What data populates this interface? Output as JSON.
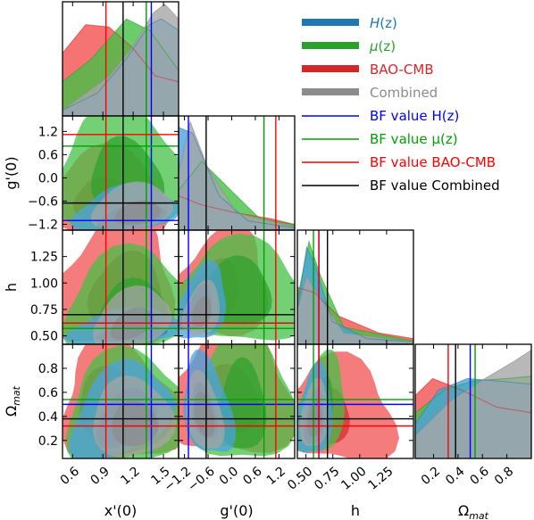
{
  "chart_data": {
    "type": "corner",
    "parameters": [
      "x'(0)",
      "g'(0)",
      "h",
      "Ωmat"
    ],
    "axis_labels": {
      "x": [
        "x'(0)",
        "g'(0)",
        "h",
        "Ω"
      ],
      "x_sub": [
        "",
        "",
        "",
        "mat"
      ],
      "y": [
        "g'(0)",
        "h",
        "Ω"
      ],
      "y_sub": [
        "",
        "",
        "mat"
      ]
    },
    "ranges": {
      "x'(0)": [
        0.5,
        1.65
      ],
      "g'(0)": [
        -1.35,
        1.6
      ],
      "h": [
        0.42,
        1.5
      ],
      "Ωmat": [
        0.05,
        1.0
      ]
    },
    "ticks": {
      "x'(0)": [
        0.6,
        0.9,
        1.2,
        1.5
      ],
      "g'(0)": [
        -1.2,
        -0.6,
        0.0,
        0.6,
        1.2
      ],
      "h": [
        0.5,
        0.75,
        1.0,
        1.25
      ],
      "Ωmat": [
        0.2,
        0.4,
        0.6,
        0.8
      ]
    },
    "tick_labels": {
      "x'(0)": [
        "0.6",
        "0.9",
        "1.2",
        "1.5"
      ],
      "g'(0)": [
        "−1.2",
        "−0.6",
        "0.0",
        "0.6",
        "1.2"
      ],
      "g'(0)_y": [
        "−1.2",
        "−0.6",
        "0.0",
        "0.6",
        "1.2"
      ],
      "h": [
        "0.50",
        "0.75",
        "1.00",
        "1.25"
      ],
      "h_y": [
        "0.50",
        "0.75",
        "1.00",
        "1.25"
      ],
      "Ωmat": [
        "0.2",
        "0.4",
        "0.6",
        "0.8"
      ],
      "Ωmat_y": [
        "0.2",
        "0.4",
        "0.6",
        "0.8"
      ]
    },
    "series": [
      {
        "name": "H(z)",
        "color": "#2c7fb8",
        "fill": "#4aa3df"
      },
      {
        "name": "μ(z)",
        "color": "#2ca02c",
        "fill": "#45c045"
      },
      {
        "name": "BAO-CMB",
        "color": "#d62728",
        "fill": "#f25050"
      },
      {
        "name": "Combined",
        "color": "#8c8c8c",
        "fill": "#a6a6a6"
      }
    ],
    "best_fit": [
      {
        "name": "BF value H(z)",
        "color": "#0000ff",
        "x'(0)": 1.38,
        "g'(0)": -1.1,
        "h": 0.62,
        "Ωmat": 0.5
      },
      {
        "name": "BF value μ(z)",
        "color": "#00a000",
        "x'(0)": 1.33,
        "g'(0)": 0.82,
        "h": 0.57,
        "Ωmat": 0.54
      },
      {
        "name": "BF value BAO-CMB",
        "color": "#ff0000",
        "x'(0)": 0.93,
        "g'(0)": 1.12,
        "h": 0.62,
        "Ωmat": 0.32
      },
      {
        "name": "BF value Combined",
        "color": "#000000",
        "x'(0)": 1.1,
        "g'(0)": -0.65,
        "h": 0.7,
        "Ωmat": 0.38
      }
    ]
  },
  "legend": {
    "entries": [
      {
        "label_main": "H",
        "label_rest": "(z)",
        "italic": true,
        "color": "#1f77b4",
        "swatch": "#1f77b4",
        "type": "band"
      },
      {
        "label_main": "μ",
        "label_rest": "(z)",
        "italic": true,
        "color": "#2ca02c",
        "swatch": "#2ca02c",
        "type": "band"
      },
      {
        "label_main": "BAO-CMB",
        "label_rest": "",
        "italic": false,
        "color": "#d62728",
        "swatch": "#d62728",
        "type": "band"
      },
      {
        "label_main": "Combined",
        "label_rest": "",
        "italic": false,
        "color": "#8c8c8c",
        "swatch": "#8c8c8c",
        "type": "band"
      },
      {
        "label_main": "BF value ",
        "label_rest": "H(z)",
        "italic": false,
        "color": "#0000ff",
        "swatch": "#0000ff",
        "type": "line"
      },
      {
        "label_main": "BF value ",
        "label_rest": "μ(z)",
        "italic": false,
        "color": "#00a000",
        "swatch": "#00a000",
        "type": "line"
      },
      {
        "label_main": "BF value BAO-CMB",
        "label_rest": "",
        "italic": false,
        "color": "#ff0000",
        "swatch": "#ff0000",
        "type": "line"
      },
      {
        "label_main": "BF value Combined",
        "label_rest": "",
        "italic": false,
        "color": "#000000",
        "swatch": "#000000",
        "type": "line"
      }
    ]
  }
}
